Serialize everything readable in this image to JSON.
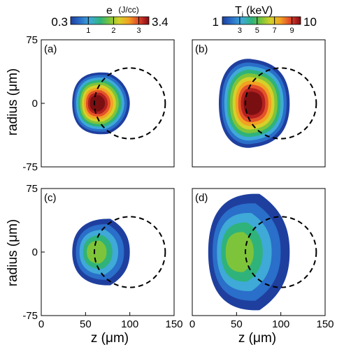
{
  "chart_data": [
    {
      "type": "heatmap",
      "panel_label": "(a)",
      "quantity": "e",
      "z_ticks": [],
      "radius_ticks": [
        "75",
        "0",
        "-75"
      ],
      "xlim": [
        0,
        150
      ],
      "ylim": [
        -75,
        75
      ],
      "plume": {
        "z_min": 35,
        "z_max": 100,
        "radius_half": 38,
        "peak_z": 62,
        "shape": "cone",
        "peak_level": 1.0
      },
      "circle": {
        "center_z": 100,
        "center_r": 0,
        "radius": 40,
        "style": "dashed"
      }
    },
    {
      "type": "heatmap",
      "panel_label": "(b)",
      "quantity": "Ti",
      "z_ticks": [],
      "radius_ticks": [],
      "xlim": [
        0,
        150
      ],
      "ylim": [
        -75,
        75
      ],
      "plume": {
        "z_min": 30,
        "z_max": 110,
        "radius_half": 52,
        "peak_z": 68,
        "shape": "bulge",
        "peak_level": 1.0
      },
      "circle": {
        "center_z": 100,
        "center_r": 0,
        "radius": 40,
        "style": "dashed"
      }
    },
    {
      "type": "heatmap",
      "panel_label": "(c)",
      "quantity": "e",
      "z_ticks": [
        "0",
        "50",
        "100",
        "150"
      ],
      "radius_ticks": [
        "75",
        "0",
        "-75"
      ],
      "xlim": [
        0,
        150
      ],
      "ylim": [
        -75,
        75
      ],
      "plume": {
        "z_min": 35,
        "z_max": 100,
        "radius_half": 40,
        "peak_z": 60,
        "shape": "dome",
        "peak_level": 0.45
      },
      "circle": {
        "center_z": 100,
        "center_r": 0,
        "radius": 40,
        "style": "dashed"
      }
    },
    {
      "type": "heatmap",
      "panel_label": "(d)",
      "quantity": "Ti",
      "z_ticks": [
        "0",
        "50",
        "100",
        "150"
      ],
      "radius_ticks": [],
      "xlim": [
        0,
        150
      ],
      "ylim": [
        -75,
        75
      ],
      "plume": {
        "z_min": 18,
        "z_max": 110,
        "radius_half": 70,
        "peak_z": 48,
        "shape": "dome",
        "peak_level": 0.45
      },
      "circle": {
        "center_z": 100,
        "center_r": 0,
        "radius": 40,
        "style": "dashed"
      }
    }
  ],
  "colorbars": [
    {
      "name": "e-colorbar",
      "title_main": "e",
      "title_unit": "(J/cc)",
      "min_label": "0.3",
      "max_label": "3.4",
      "min": 0.3,
      "max": 3.4,
      "ticks": [
        {
          "value": 1,
          "label": "1"
        },
        {
          "value": 2,
          "label": "2"
        },
        {
          "value": 3,
          "label": "3"
        }
      ]
    },
    {
      "name": "ti-colorbar",
      "title_main": "T",
      "title_sub": "i",
      "title_unit": "(keV)",
      "min_label": "1",
      "max_label": "10",
      "min": 1,
      "max": 10,
      "ticks": [
        {
          "value": 3,
          "label": "3"
        },
        {
          "value": 5,
          "label": "5"
        },
        {
          "value": 7,
          "label": "7"
        },
        {
          "value": 9,
          "label": "9"
        }
      ]
    }
  ],
  "axis_labels": {
    "y_top": "radius (μm)",
    "y_bottom": "radius (μm)",
    "x_left": "z (μm)",
    "x_right": "z (μm)"
  },
  "colormap": [
    "#1f3f9f",
    "#2a6fc9",
    "#3fa9d8",
    "#2fb37a",
    "#7ec43a",
    "#d6d02a",
    "#f2a222",
    "#e3522a",
    "#b3201f",
    "#7a0f12"
  ]
}
